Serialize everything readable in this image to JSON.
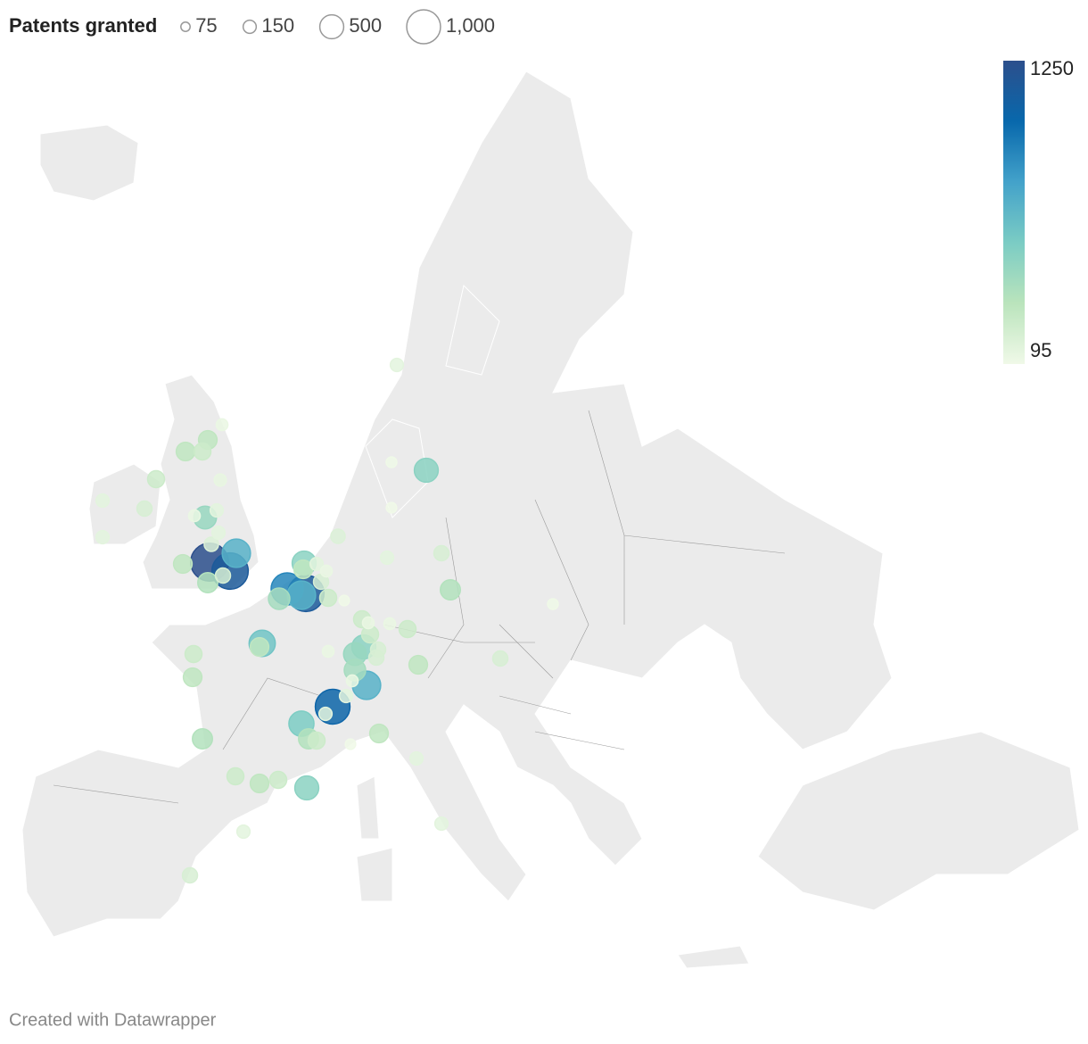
{
  "legend": {
    "title": "Patents granted",
    "sizes": [
      75,
      150,
      500,
      {
        "value": 1000,
        "label": "1,000"
      }
    ]
  },
  "color_scale": {
    "max": 1250,
    "min": 95,
    "colors": [
      "#f0f9e8",
      "#bae4bc",
      "#7bccc4",
      "#43a2ca",
      "#0868ac",
      "#2c4f8c"
    ]
  },
  "bubbles": [
    1250,
    1150,
    700,
    200,
    350,
    300,
    450,
    150,
    120,
    150,
    180,
    300,
    300,
    250,
    120,
    130,
    250,
    200,
    150,
    150,
    900,
    1150,
    700,
    400,
    500,
    300,
    150,
    120,
    200,
    250,
    95,
    180,
    150,
    200,
    350,
    100,
    500,
    100,
    95,
    150,
    600,
    300,
    250,
    300,
    350,
    250,
    120,
    250,
    500,
    200,
    200,
    450,
    400,
    700,
    120,
    120,
    120,
    250,
    300,
    200,
    1050,
    150,
    550,
    350,
    250,
    95,
    300,
    150,
    500,
    250,
    300,
    250,
    150,
    200,
    150,
    150
  ],
  "footer": "Created with Datawrapper"
}
